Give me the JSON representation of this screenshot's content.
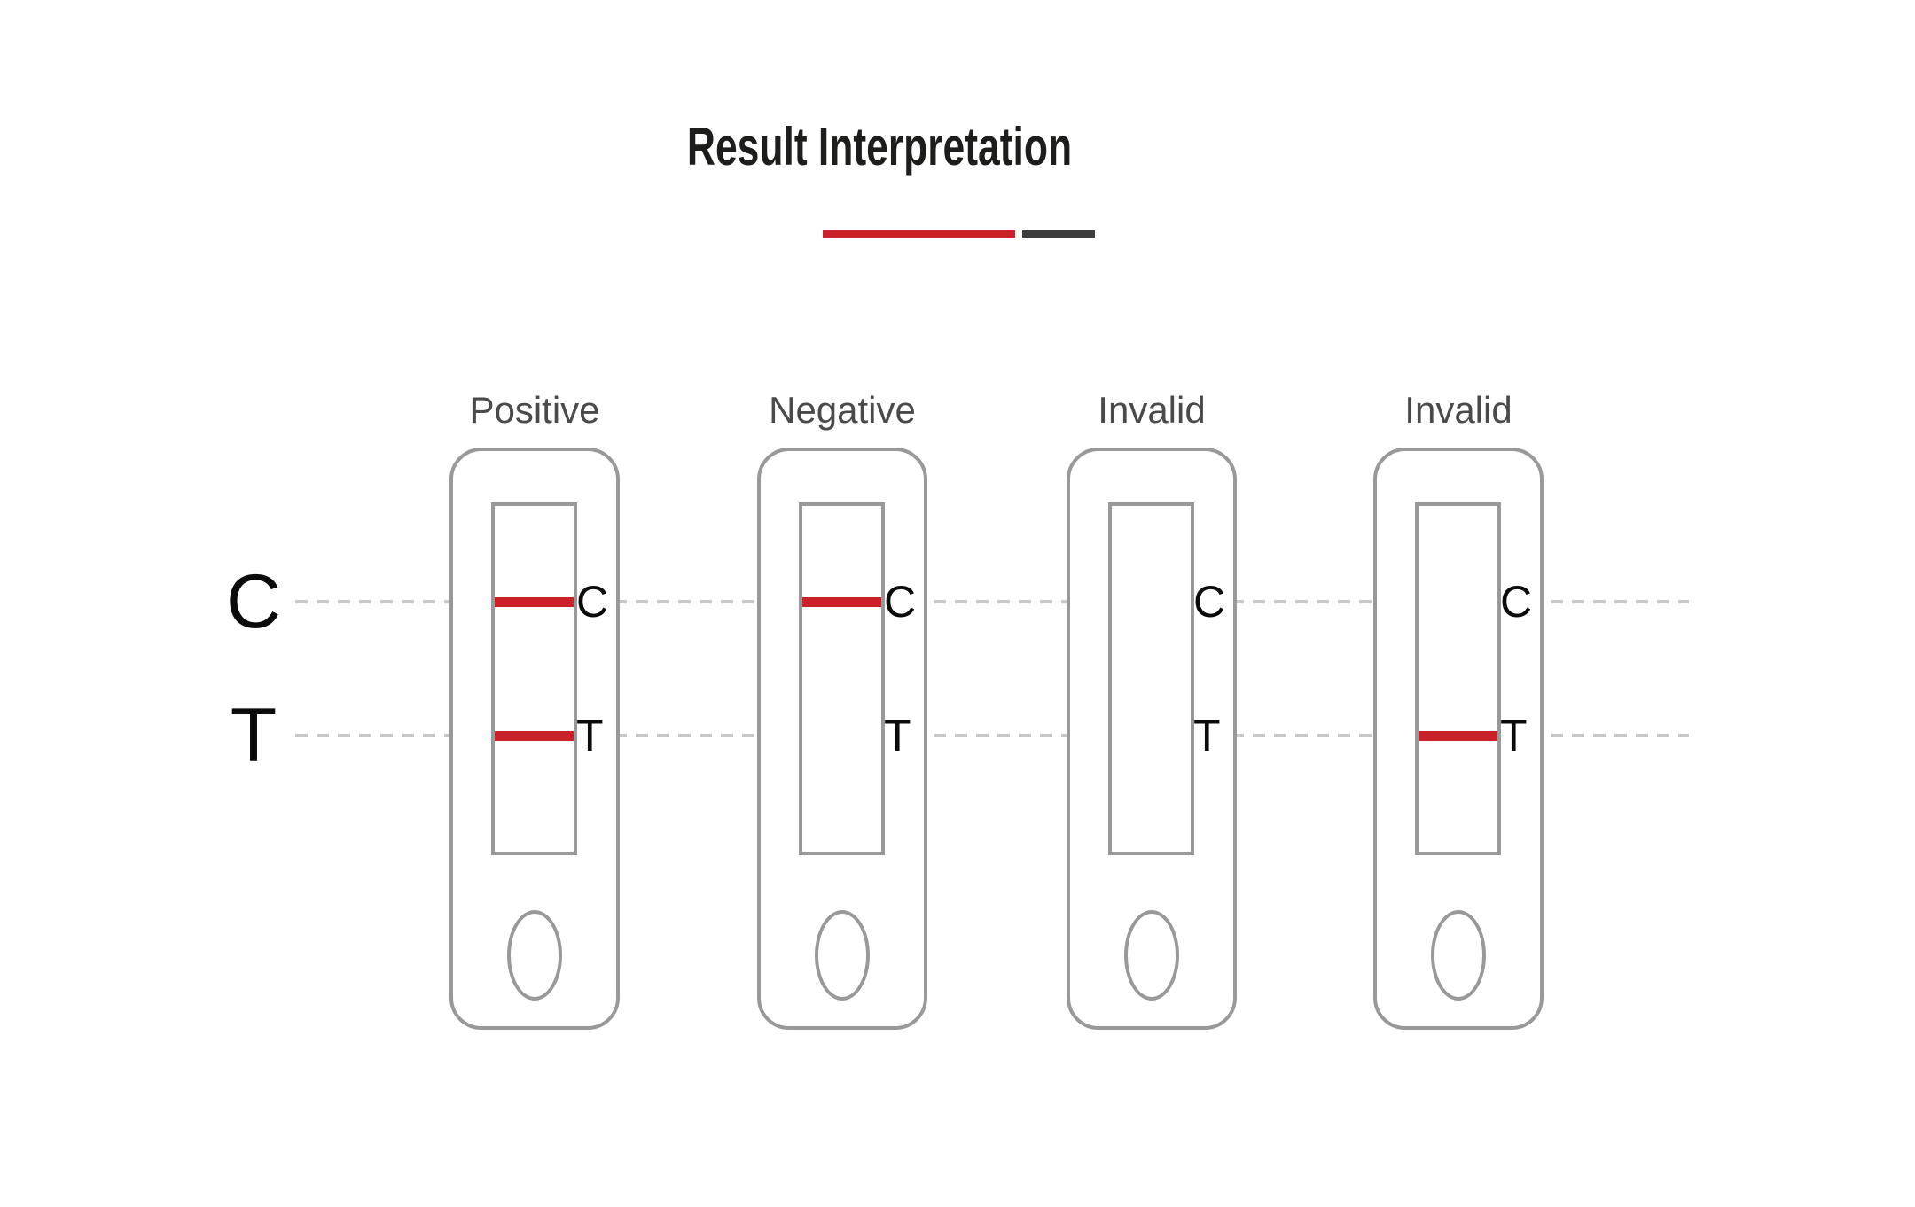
{
  "title": "Result Interpretation",
  "axis": {
    "c": "C",
    "t": "T"
  },
  "markers": {
    "c": "C",
    "t": "T"
  },
  "cassettes": [
    {
      "label": "Positive",
      "lines": {
        "c": true,
        "t": true
      }
    },
    {
      "label": "Negative",
      "lines": {
        "c": true,
        "t": false
      }
    },
    {
      "label": "Invalid",
      "lines": {
        "c": false,
        "t": false
      }
    },
    {
      "label": "Invalid",
      "lines": {
        "c": false,
        "t": true
      }
    }
  ],
  "colors": {
    "line-red": "#cb2128",
    "divider-dark": "#3d3d3d",
    "cassette-border": "#999999",
    "dash-gray": "#c9c9c9",
    "label-gray": "#4a4a4a",
    "title-color": "#1d1d1b"
  }
}
